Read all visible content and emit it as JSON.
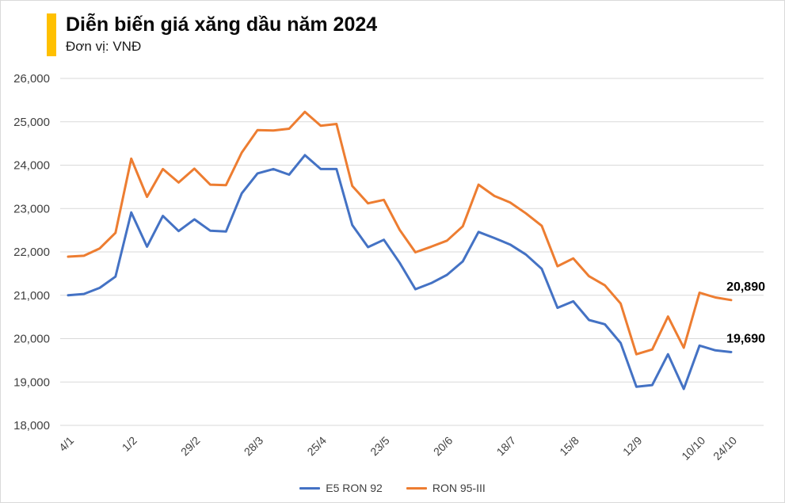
{
  "header": {
    "title": "Diễn biến giá xăng dầu năm 2024",
    "subtitle": "Đơn vị: VNĐ",
    "accent_color": "#FFC000"
  },
  "chart_data": {
    "type": "line",
    "title": "Diễn biến giá xăng dầu năm 2024",
    "unit_label": "Đơn vị: VNĐ",
    "grid": "horizontal",
    "legend_position": "bottom-center",
    "ylim": [
      18000,
      26000
    ],
    "ytick_step": 1000,
    "x": [
      "4/1",
      "11/1",
      "18/1",
      "25/1",
      "1/2",
      "8/2",
      "15/2",
      "22/2",
      "29/2",
      "7/3",
      "14/3",
      "21/3",
      "28/3",
      "4/4",
      "11/4",
      "18/4",
      "25/4",
      "2/5",
      "9/5",
      "16/5",
      "23/5",
      "30/5",
      "6/6",
      "13/6",
      "20/6",
      "27/6",
      "4/7",
      "11/7",
      "18/7",
      "25/7",
      "1/8",
      "8/8",
      "15/8",
      "22/8",
      "29/8",
      "5/9",
      "12/9",
      "19/9",
      "26/9",
      "3/10",
      "10/10",
      "17/10",
      "24/10"
    ],
    "x_ticks": [
      {
        "i": 0,
        "label": "4/1"
      },
      {
        "i": 4,
        "label": "1/2"
      },
      {
        "i": 8,
        "label": "29/2"
      },
      {
        "i": 12,
        "label": "28/3"
      },
      {
        "i": 16,
        "label": "25/4"
      },
      {
        "i": 20,
        "label": "23/5"
      },
      {
        "i": 24,
        "label": "20/6"
      },
      {
        "i": 28,
        "label": "18/7"
      },
      {
        "i": 32,
        "label": "15/8"
      },
      {
        "i": 36,
        "label": "12/9"
      },
      {
        "i": 40,
        "label": "10/10"
      },
      {
        "i": 42,
        "label": "24/10"
      }
    ],
    "series": [
      {
        "name": "E5 RON 92",
        "color": "#4472C4",
        "end_label": "19,690",
        "values": [
          21000,
          21030,
          21170,
          21430,
          22910,
          22120,
          22830,
          22480,
          22750,
          22490,
          22470,
          23350,
          23810,
          23910,
          23780,
          24230,
          23910,
          23910,
          22620,
          22110,
          22280,
          21750,
          21140,
          21280,
          21470,
          21780,
          22460,
          22320,
          22170,
          21940,
          21610,
          20710,
          20860,
          20430,
          20330,
          19900,
          18890,
          18930,
          19640,
          18840,
          19840,
          19730,
          19690
        ]
      },
      {
        "name": "RON 95-III",
        "color": "#ED7D31",
        "end_label": "20,890",
        "values": [
          21890,
          21910,
          22080,
          22440,
          24150,
          23270,
          23910,
          23600,
          23920,
          23550,
          23540,
          24290,
          24810,
          24800,
          24840,
          25230,
          24910,
          24950,
          23520,
          23120,
          23200,
          22510,
          21990,
          22120,
          22260,
          22590,
          23550,
          23290,
          23140,
          22890,
          22600,
          21670,
          21850,
          21440,
          21230,
          20810,
          19640,
          19750,
          20510,
          19790,
          21060,
          20950,
          20890
        ]
      }
    ],
    "grid_color": "#d9d9d9",
    "axis_text_color": "#404040",
    "end_label_color": "#000000"
  },
  "legend": {
    "items": [
      {
        "label": "E5 RON 92"
      },
      {
        "label": "RON 95-III"
      }
    ]
  }
}
